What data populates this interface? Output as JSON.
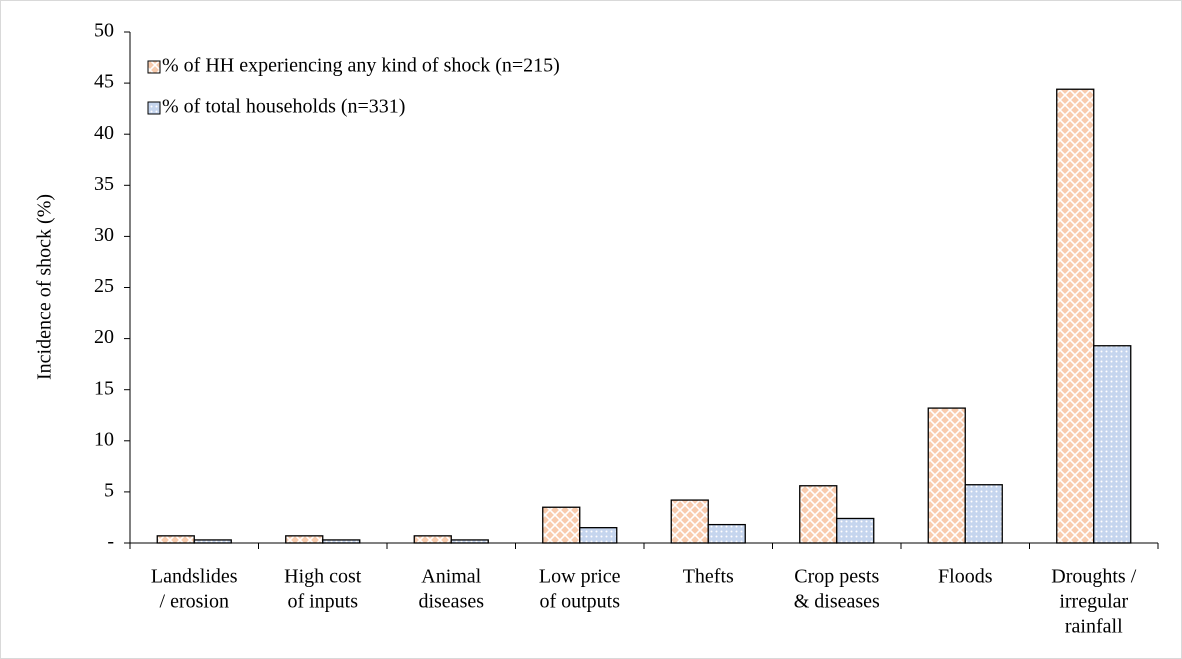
{
  "chart_data": {
    "type": "bar",
    "y_label": "Incidence of shock (%)",
    "categories": [
      [
        "Landslides",
        "/ erosion"
      ],
      [
        "High cost",
        "of inputs"
      ],
      [
        "Animal",
        "diseases"
      ],
      [
        "Low price",
        "of outputs"
      ],
      [
        "Thefts"
      ],
      [
        "Crop pests",
        "& diseases"
      ],
      [
        "Floods"
      ],
      [
        "Droughts /",
        "irregular",
        "rainfall"
      ]
    ],
    "series": [
      {
        "name": "% of HH experiencing any kind of shock (n=215)",
        "color": "#f8cbad",
        "values": [
          0.7,
          0.7,
          0.7,
          3.5,
          4.2,
          5.6,
          13.2,
          44.4
        ]
      },
      {
        "name": "% of total households  (n=331)",
        "color": "#c5d5ee",
        "values": [
          0.3,
          0.3,
          0.3,
          1.5,
          1.8,
          2.4,
          5.7,
          19.3
        ]
      }
    ],
    "ylim": [
      0,
      50
    ],
    "yticks": [
      {
        "value": 0,
        "label": "-"
      },
      5,
      10,
      15,
      20,
      25,
      30,
      35,
      40,
      45,
      50
    ],
    "legend": "top-left"
  }
}
